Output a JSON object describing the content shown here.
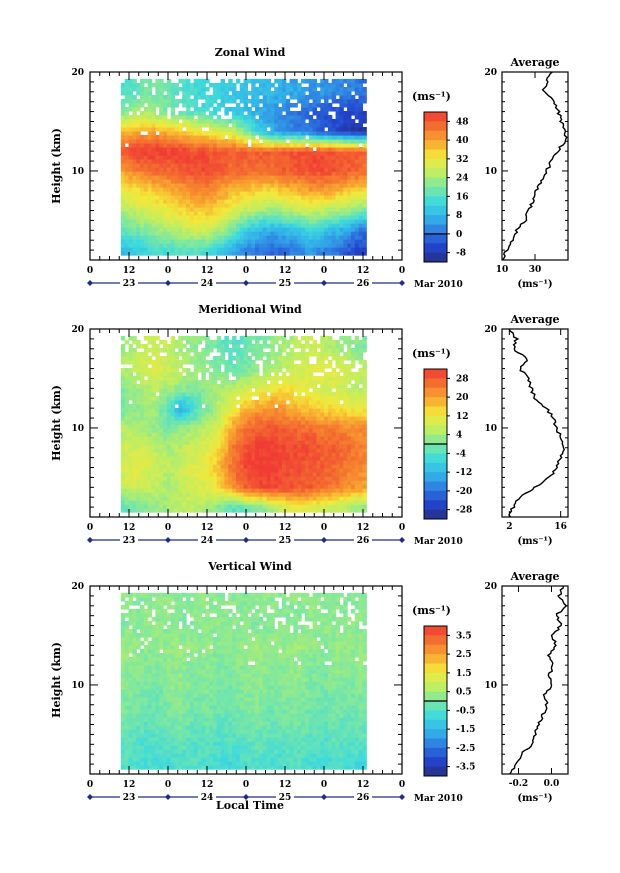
{
  "figure": {
    "date_label": "Mar 2010",
    "xlabel": "Local Time",
    "ylabel": "Height (km)",
    "unit": "(ms⁻¹)",
    "colormap": [
      "#283080",
      "#2244cc",
      "#2f7ae0",
      "#33b5e8",
      "#3fdadc",
      "#7ee8a0",
      "#c2ee60",
      "#f4e83a",
      "#f8a830",
      "#f47030",
      "#f03c34"
    ]
  },
  "panels": [
    {
      "title": "Zonal Wind",
      "profile_title": "Average",
      "colorbar_ticks": [
        "48",
        "40",
        "32",
        "24",
        "16",
        "8",
        "0",
        "-8"
      ],
      "profile_xticks": [
        "10",
        "30"
      ],
      "profile_unit": "(ms⁻¹)"
    },
    {
      "title": "Meridional Wind",
      "profile_title": "Average",
      "colorbar_ticks": [
        "28",
        "20",
        "12",
        "4",
        "-4",
        "-12",
        "-20",
        "-28"
      ],
      "profile_xticks": [
        "2",
        "16"
      ],
      "profile_unit": "(ms⁻¹)"
    },
    {
      "title": "Vertical Wind",
      "profile_title": "Average",
      "colorbar_ticks": [
        "3.5",
        "2.5",
        "1.5",
        "0.5",
        "-0.5",
        "-1.5",
        "-2.5",
        "-3.5"
      ],
      "profile_xticks": [
        "-0.2",
        "0.0"
      ],
      "profile_unit": "(ms⁻¹)"
    }
  ],
  "chart_data": [
    {
      "type": "heatmap",
      "title": "Zonal Wind",
      "xlabel": "",
      "ylabel": "Height (km)",
      "x_ticks": [
        "0",
        "12",
        "0",
        "12",
        "0",
        "12",
        "0",
        "12",
        "0"
      ],
      "date_ticks": [
        "23",
        "24",
        "25",
        "26"
      ],
      "y_ticks": [
        "10",
        "20"
      ],
      "ylim": [
        1,
        20
      ],
      "colorbar": {
        "unit": "(ms⁻¹)",
        "ticks": [
          48,
          40,
          32,
          24,
          16,
          8,
          0,
          -8
        ],
        "range": [
          -12,
          52
        ]
      },
      "field": {
        "heights": [
          2,
          4,
          6,
          8,
          10,
          12,
          14,
          16,
          18
        ],
        "times": [
          0,
          4,
          8,
          12,
          16,
          20,
          24,
          28,
          32,
          36,
          40,
          44,
          48,
          52,
          56,
          60,
          64,
          68,
          72,
          76,
          80,
          84
        ],
        "values": [
          [
            4,
            6,
            8,
            10,
            12,
            14,
            14,
            16,
            16,
            14,
            10,
            6,
            2,
            0,
            -2,
            0,
            2,
            4,
            2,
            0,
            -4,
            -6
          ],
          [
            8,
            12,
            16,
            18,
            20,
            22,
            24,
            26,
            28,
            28,
            24,
            18,
            12,
            8,
            6,
            8,
            10,
            12,
            10,
            8,
            4,
            0
          ],
          [
            14,
            18,
            22,
            26,
            28,
            30,
            32,
            34,
            36,
            36,
            34,
            30,
            26,
            24,
            22,
            24,
            26,
            28,
            26,
            24,
            22,
            20
          ],
          [
            20,
            24,
            28,
            32,
            34,
            36,
            38,
            40,
            42,
            42,
            40,
            38,
            36,
            34,
            34,
            36,
            38,
            40,
            40,
            38,
            36,
            34
          ],
          [
            30,
            34,
            38,
            42,
            44,
            46,
            46,
            48,
            50,
            50,
            48,
            46,
            46,
            46,
            46,
            48,
            48,
            50,
            50,
            48,
            48,
            46
          ],
          [
            44,
            46,
            48,
            50,
            52,
            52,
            52,
            52,
            50,
            50,
            48,
            48,
            48,
            48,
            48,
            48,
            50,
            50,
            50,
            50,
            48,
            48
          ],
          [
            30,
            34,
            36,
            38,
            40,
            40,
            38,
            36,
            34,
            32,
            30,
            28,
            20,
            12,
            6,
            4,
            2,
            0,
            -4,
            -6,
            -8,
            -10
          ],
          [
            14,
            16,
            20,
            22,
            24,
            22,
            20,
            18,
            16,
            14,
            12,
            10,
            8,
            6,
            4,
            2,
            0,
            -2,
            -4,
            -4,
            -6,
            -6
          ],
          [
            10,
            12,
            14,
            16,
            18,
            20,
            18,
            16,
            14,
            12,
            12,
            10,
            10,
            8,
            8,
            6,
            6,
            4,
            4,
            2,
            2,
            0
          ]
        ]
      },
      "profile": {
        "title": "Average",
        "xlabel": "(ms⁻¹)",
        "xlim": [
          10,
          50
        ],
        "x_ticks": [
          10,
          30
        ],
        "heights": [
          1,
          2,
          3,
          4,
          5,
          6,
          7,
          8,
          9,
          10,
          11,
          12,
          13,
          14,
          15,
          16,
          17,
          18,
          19,
          20
        ],
        "values": [
          10,
          13,
          16,
          19,
          24,
          26,
          29,
          31,
          34,
          37,
          40,
          44,
          48,
          49,
          46,
          44,
          42,
          35,
          37,
          40
        ]
      }
    },
    {
      "type": "heatmap",
      "title": "Meridional Wind",
      "xlabel": "",
      "ylabel": "Height (km)",
      "x_ticks": [
        "0",
        "12",
        "0",
        "12",
        "0",
        "12",
        "0",
        "12",
        "0"
      ],
      "date_ticks": [
        "23",
        "24",
        "25",
        "26"
      ],
      "y_ticks": [
        "10",
        "20"
      ],
      "ylim": [
        1,
        20
      ],
      "colorbar": {
        "unit": "(ms⁻¹)",
        "ticks": [
          28,
          20,
          12,
          4,
          -4,
          -12,
          -20,
          -28
        ],
        "range": [
          -32,
          32
        ]
      },
      "field": {
        "heights": [
          2,
          4,
          6,
          8,
          10,
          12,
          14,
          16,
          18
        ],
        "times": [
          0,
          4,
          8,
          12,
          16,
          20,
          24,
          28,
          32,
          36,
          40,
          44,
          48,
          52,
          56,
          60,
          64,
          68,
          72,
          76,
          80,
          84
        ],
        "values": [
          [
            -2,
            -4,
            -6,
            -2,
            0,
            2,
            4,
            6,
            6,
            4,
            0,
            -4,
            -2,
            0,
            4,
            8,
            12,
            10,
            8,
            6,
            4,
            2
          ],
          [
            2,
            4,
            6,
            8,
            8,
            6,
            4,
            6,
            8,
            10,
            14,
            22,
            28,
            30,
            30,
            30,
            28,
            28,
            26,
            24,
            22,
            20
          ],
          [
            4,
            6,
            8,
            10,
            10,
            8,
            6,
            8,
            10,
            12,
            18,
            26,
            30,
            32,
            32,
            30,
            30,
            28,
            28,
            26,
            24,
            22
          ],
          [
            2,
            4,
            6,
            8,
            8,
            6,
            4,
            6,
            8,
            10,
            14,
            24,
            30,
            32,
            32,
            30,
            30,
            30,
            28,
            28,
            26,
            24
          ],
          [
            0,
            2,
            4,
            6,
            4,
            2,
            0,
            2,
            4,
            6,
            10,
            20,
            26,
            28,
            28,
            28,
            26,
            26,
            24,
            24,
            22,
            22
          ],
          [
            -8,
            -16,
            -4,
            0,
            2,
            4,
            -4,
            -14,
            -6,
            0,
            6,
            12,
            18,
            20,
            22,
            20,
            18,
            16,
            14,
            14,
            12,
            12
          ],
          [
            -4,
            -2,
            0,
            2,
            4,
            6,
            4,
            2,
            0,
            2,
            4,
            6,
            8,
            10,
            12,
            14,
            12,
            10,
            8,
            8,
            6,
            6
          ],
          [
            0,
            2,
            4,
            6,
            8,
            10,
            8,
            6,
            4,
            2,
            0,
            -2,
            0,
            2,
            4,
            6,
            8,
            10,
            12,
            10,
            8,
            6
          ],
          [
            -2,
            0,
            2,
            4,
            6,
            8,
            6,
            4,
            2,
            0,
            -2,
            -4,
            -2,
            0,
            2,
            4,
            6,
            8,
            6,
            4,
            2,
            0
          ]
        ]
      },
      "profile": {
        "title": "Average",
        "xlabel": "(ms⁻¹)",
        "xlim": [
          0,
          18
        ],
        "x_ticks": [
          2,
          16
        ],
        "heights": [
          1,
          2,
          3,
          4,
          5,
          6,
          7,
          8,
          9,
          10,
          11,
          12,
          13,
          14,
          15,
          16,
          17,
          18,
          19,
          20
        ],
        "values": [
          2,
          3,
          5,
          9,
          13,
          15,
          16,
          17,
          16,
          15,
          14,
          12,
          9,
          8,
          7,
          5,
          7,
          3,
          4,
          2
        ]
      }
    },
    {
      "type": "heatmap",
      "title": "Vertical Wind",
      "xlabel": "Local Time",
      "ylabel": "Height (km)",
      "x_ticks": [
        "0",
        "12",
        "0",
        "12",
        "0",
        "12",
        "0",
        "12",
        "0"
      ],
      "date_ticks": [
        "23",
        "24",
        "25",
        "26"
      ],
      "y_ticks": [
        "10",
        "20"
      ],
      "ylim": [
        1,
        20
      ],
      "colorbar": {
        "unit": "(ms⁻¹)",
        "ticks": [
          3.5,
          2.5,
          1.5,
          0.5,
          -0.5,
          -1.5,
          -2.5,
          -3.5
        ],
        "range": [
          -4,
          4
        ]
      },
      "field": {
        "heights": [
          2,
          4,
          6,
          8,
          10,
          12,
          14,
          16,
          18
        ],
        "times": [
          0,
          4,
          8,
          12,
          16,
          20,
          24,
          28,
          32,
          36,
          40,
          44,
          48,
          52,
          56,
          60,
          64,
          68,
          72,
          76,
          80,
          84
        ],
        "values": [
          [
            -0.8,
            -0.6,
            -0.7,
            -0.5,
            -0.6,
            -0.7,
            -0.8,
            -0.6,
            -0.5,
            -0.6,
            -0.7,
            -0.8,
            -0.6,
            -0.5,
            -0.7,
            -0.6,
            -0.5,
            -0.7,
            -0.8,
            -0.6,
            -0.7,
            -0.9
          ],
          [
            -0.4,
            -0.5,
            -0.3,
            -0.4,
            -0.6,
            -0.5,
            -0.4,
            -0.3,
            -0.5,
            -0.4,
            -0.6,
            -0.5,
            -0.4,
            -0.3,
            -0.5,
            -0.4,
            -0.3,
            -0.5,
            -0.6,
            -0.4,
            -0.5,
            -0.4
          ],
          [
            -0.2,
            -0.3,
            -0.1,
            -0.2,
            -0.3,
            -0.4,
            -0.2,
            -0.1,
            -0.3,
            -0.2,
            -0.4,
            -0.3,
            -0.2,
            -0.1,
            -0.3,
            -0.2,
            -0.1,
            -0.3,
            -0.4,
            -0.2,
            -0.3,
            -0.2
          ],
          [
            0.0,
            -0.1,
            0.1,
            0.0,
            -0.1,
            -0.2,
            0.0,
            0.1,
            -0.1,
            0.0,
            -0.2,
            -0.1,
            0.0,
            0.1,
            -0.1,
            0.0,
            0.1,
            -0.1,
            -0.2,
            0.0,
            -0.1,
            0.0
          ],
          [
            0.1,
            0.0,
            0.2,
            0.1,
            0.0,
            -0.1,
            0.1,
            0.2,
            0.0,
            0.1,
            -0.1,
            0.0,
            0.1,
            0.2,
            0.0,
            0.1,
            0.2,
            0.0,
            -0.1,
            0.1,
            0.0,
            0.1
          ],
          [
            0.2,
            0.1,
            0.3,
            0.2,
            0.1,
            0.0,
            0.2,
            0.3,
            0.1,
            0.2,
            0.0,
            0.1,
            0.2,
            0.3,
            0.1,
            0.2,
            0.3,
            0.1,
            0.0,
            0.2,
            0.1,
            0.2
          ],
          [
            0.3,
            0.2,
            0.4,
            0.3,
            0.2,
            0.1,
            0.3,
            0.4,
            0.2,
            0.3,
            0.1,
            0.2,
            0.3,
            0.4,
            0.2,
            0.3,
            0.4,
            0.2,
            0.1,
            0.3,
            0.2,
            0.3
          ],
          [
            0.1,
            0.2,
            0.0,
            0.1,
            0.2,
            0.3,
            0.1,
            0.0,
            0.2,
            0.1,
            0.3,
            0.2,
            0.1,
            0.0,
            0.2,
            0.1,
            0.0,
            0.2,
            0.3,
            0.1,
            0.2,
            0.1
          ],
          [
            0.2,
            0.1,
            0.3,
            0.2,
            0.1,
            0.2,
            0.3,
            0.1,
            0.2,
            0.3,
            0.1,
            0.2,
            0.1,
            0.3,
            0.2,
            0.1,
            0.2,
            0.3,
            0.1,
            0.2,
            0.1,
            0.2
          ]
        ]
      },
      "profile": {
        "title": "Average",
        "xlabel": "(ms⁻¹)",
        "xlim": [
          -0.3,
          0.1
        ],
        "x_ticks": [
          -0.2,
          0.0
        ],
        "heights": [
          1,
          2,
          3,
          4,
          5,
          6,
          7,
          8,
          9,
          10,
          11,
          12,
          13,
          14,
          15,
          16,
          17,
          18,
          19,
          20
        ],
        "values": [
          -0.25,
          -0.22,
          -0.18,
          -0.12,
          -0.1,
          -0.08,
          -0.05,
          -0.03,
          -0.04,
          0.0,
          -0.01,
          0.01,
          -0.02,
          0.03,
          0.0,
          0.06,
          0.03,
          0.08,
          0.05,
          0.07
        ]
      }
    }
  ]
}
